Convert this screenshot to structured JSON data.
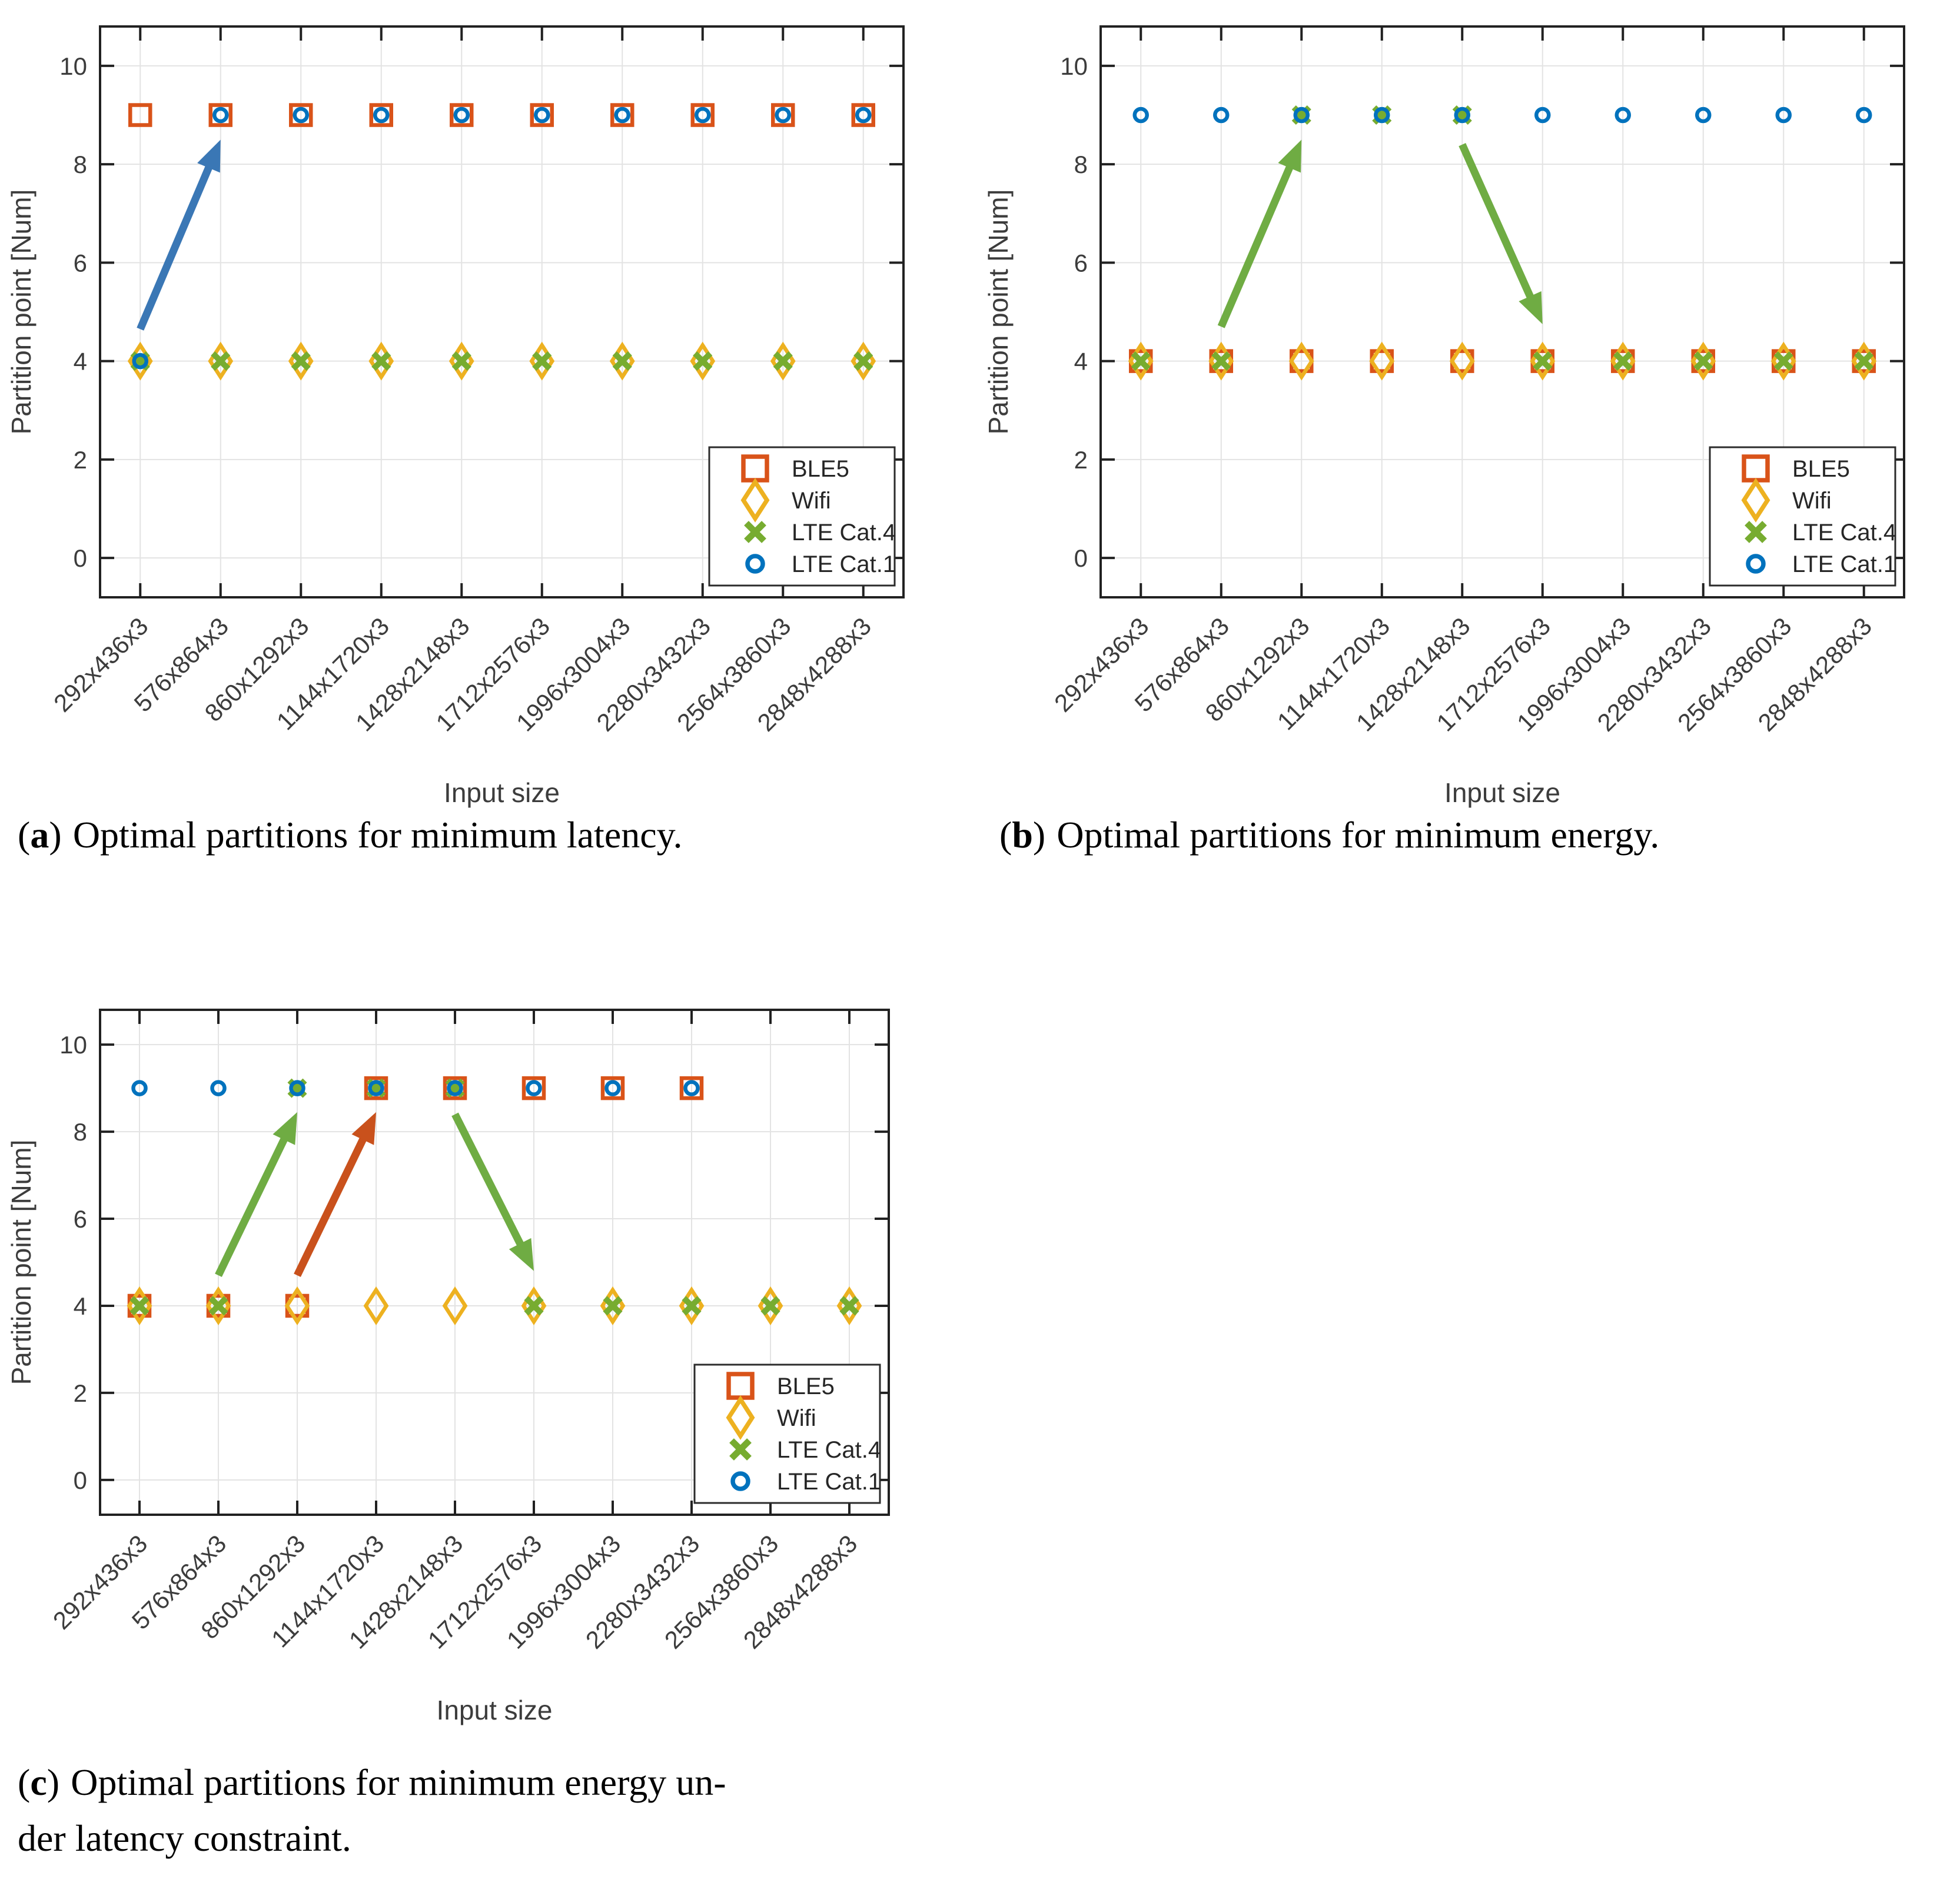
{
  "page_background": "#ffffff",
  "colors": {
    "grid": "#E3E3E3",
    "axis": "#212121",
    "tick_label": "#3C3C3C",
    "legend_border": "#2B2B2B",
    "arrow_blue": "#3A77B5",
    "arrow_green": "#6FAC43",
    "arrow_orange": "#C9511C"
  },
  "chart_data": [
    {
      "panel": "a",
      "type": "scatter",
      "caption": {
        "open": "(",
        "letter": "a",
        "close": ")",
        "line1": "Optimal partitions for minimum latency.",
        "line2": ""
      },
      "xlabel": "Input size",
      "ylabel": "Partition point [Num]",
      "ylim": [
        -0.8,
        10.8
      ],
      "yticks": [
        0,
        2,
        4,
        6,
        8,
        10
      ],
      "grid": true,
      "legend_position": "bottom-right",
      "categories": [
        "292x436x3",
        "576x864x3",
        "860x1292x3",
        "1144x1720x3",
        "1428x2148x3",
        "1712x2576x3",
        "1996x3004x3",
        "2280x3432x3",
        "2564x3860x3",
        "2848x4288x3"
      ],
      "series": [
        {
          "name": "BLE5",
          "marker": "square",
          "color": "#D95319",
          "values": [
            9,
            9,
            9,
            9,
            9,
            9,
            9,
            9,
            9,
            9
          ]
        },
        {
          "name": "Wifi",
          "marker": "diamond",
          "color": "#EDB120",
          "values": [
            4,
            4,
            4,
            4,
            4,
            4,
            4,
            4,
            4,
            4
          ]
        },
        {
          "name": "LTE Cat.4",
          "marker": "x",
          "color": "#77AC30",
          "values": [
            4,
            4,
            4,
            4,
            4,
            4,
            4,
            4,
            4,
            4
          ]
        },
        {
          "name": "LTE Cat.1",
          "marker": "circle",
          "color": "#0072BD",
          "values": [
            4,
            9,
            9,
            9,
            9,
            9,
            9,
            9,
            9,
            9
          ]
        }
      ],
      "annotations": [
        {
          "shape": "arrow",
          "color": "#3A77B5",
          "from": [
            0,
            4.65
          ],
          "to": [
            1,
            8.5
          ]
        }
      ]
    },
    {
      "panel": "b",
      "type": "scatter",
      "caption": {
        "open": "(",
        "letter": "b",
        "close": ")",
        "line1": "Optimal partitions for minimum energy.",
        "line2": ""
      },
      "xlabel": "Input size",
      "ylabel": "Partition point [Num]",
      "ylim": [
        -0.8,
        10.8
      ],
      "yticks": [
        0,
        2,
        4,
        6,
        8,
        10
      ],
      "grid": true,
      "legend_position": "bottom-right",
      "categories": [
        "292x436x3",
        "576x864x3",
        "860x1292x3",
        "1144x1720x3",
        "1428x2148x3",
        "1712x2576x3",
        "1996x3004x3",
        "2280x3432x3",
        "2564x3860x3",
        "2848x4288x3"
      ],
      "series": [
        {
          "name": "BLE5",
          "marker": "square",
          "color": "#D95319",
          "values": [
            4,
            4,
            4,
            4,
            4,
            4,
            4,
            4,
            4,
            4
          ]
        },
        {
          "name": "Wifi",
          "marker": "diamond",
          "color": "#EDB120",
          "values": [
            4,
            4,
            4,
            4,
            4,
            4,
            4,
            4,
            4,
            4
          ]
        },
        {
          "name": "LTE Cat.4",
          "marker": "x",
          "color": "#77AC30",
          "values": [
            4,
            4,
            9,
            9,
            9,
            4,
            4,
            4,
            4,
            4
          ]
        },
        {
          "name": "LTE Cat.1",
          "marker": "circle",
          "color": "#0072BD",
          "values": [
            9,
            9,
            9,
            9,
            9,
            9,
            9,
            9,
            9,
            9
          ]
        }
      ],
      "annotations": [
        {
          "shape": "arrow",
          "color": "#6FAC43",
          "from": [
            1,
            4.7
          ],
          "to": [
            2,
            8.5
          ]
        },
        {
          "shape": "arrow",
          "color": "#6FAC43",
          "from": [
            4,
            8.4
          ],
          "to": [
            5,
            4.75
          ]
        }
      ]
    },
    {
      "panel": "c",
      "type": "scatter",
      "caption": {
        "open": "(",
        "letter": "c",
        "close": ")",
        "line1": "Optimal partitions for minimum energy un-",
        "line2": "der latency constraint."
      },
      "xlabel": "Input size",
      "ylabel": "Partition point [Num]",
      "ylim": [
        -0.8,
        10.8
      ],
      "yticks": [
        0,
        2,
        4,
        6,
        8,
        10
      ],
      "grid": true,
      "legend_position": "bottom-right",
      "categories": [
        "292x436x3",
        "576x864x3",
        "860x1292x3",
        "1144x1720x3",
        "1428x2148x3",
        "1712x2576x3",
        "1996x3004x3",
        "2280x3432x3",
        "2564x3860x3",
        "2848x4288x3"
      ],
      "series": [
        {
          "name": "BLE5",
          "marker": "square",
          "color": "#D95319",
          "values": [
            4,
            4,
            4,
            9,
            9,
            9,
            9,
            9,
            null,
            null
          ]
        },
        {
          "name": "Wifi",
          "marker": "diamond",
          "color": "#EDB120",
          "values": [
            4,
            4,
            4,
            4,
            4,
            4,
            4,
            4,
            4,
            4
          ]
        },
        {
          "name": "LTE Cat.4",
          "marker": "x",
          "color": "#77AC30",
          "values": [
            4,
            4,
            9,
            9,
            9,
            4,
            4,
            4,
            4,
            4
          ]
        },
        {
          "name": "LTE Cat.1",
          "marker": "circle",
          "color": "#0072BD",
          "values": [
            9,
            9,
            9,
            9,
            9,
            9,
            9,
            9,
            null,
            null
          ]
        }
      ],
      "annotations": [
        {
          "shape": "arrow",
          "color": "#6FAC43",
          "from": [
            1,
            4.7
          ],
          "to": [
            2,
            8.45
          ]
        },
        {
          "shape": "arrow",
          "color": "#C9511C",
          "from": [
            2,
            4.7
          ],
          "to": [
            3,
            8.45
          ]
        },
        {
          "shape": "arrow",
          "color": "#6FAC43",
          "from": [
            4,
            8.4
          ],
          "to": [
            5,
            4.8
          ]
        }
      ]
    }
  ]
}
